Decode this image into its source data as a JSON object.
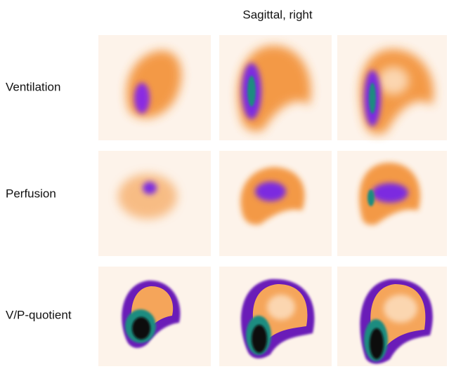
{
  "header": {
    "title": "Sagittal, right"
  },
  "rows": [
    {
      "label": "Ventilation"
    },
    {
      "label": "Perfusion"
    },
    {
      "label": "V/P-quotient"
    }
  ]
}
